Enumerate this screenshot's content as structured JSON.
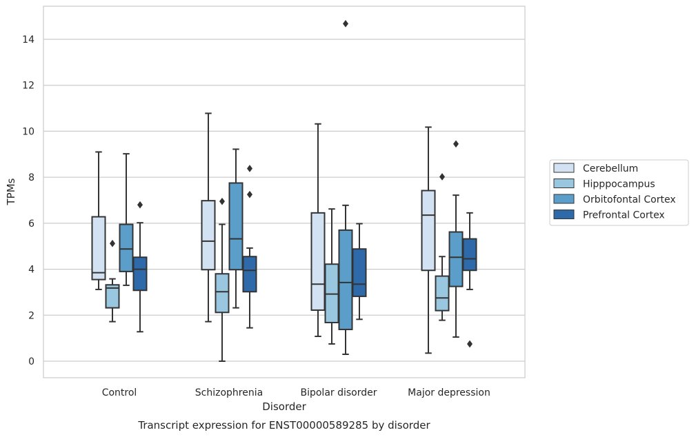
{
  "chart_data": {
    "type": "box",
    "caption": "Transcript expression for ENST00000589285 by disorder",
    "xlabel": "Disorder",
    "ylabel": "TPMs",
    "ylim": [
      -0.7,
      15.4
    ],
    "yticks": [
      0,
      2,
      4,
      6,
      8,
      10,
      12,
      14
    ],
    "grid": true,
    "legend_position": "right",
    "categories": [
      "Control",
      "Schizophrenia",
      "Bipolar disorder",
      "Major depression"
    ],
    "series": [
      {
        "name": "Cerebellum",
        "color": "#d2e2f2",
        "boxes": [
          {
            "whisker_low": 3.12,
            "q1": 3.55,
            "median": 3.85,
            "q3": 6.28,
            "whisker_high": 9.1,
            "outliers": []
          },
          {
            "whisker_low": 1.72,
            "q1": 3.98,
            "median": 5.22,
            "q3": 6.98,
            "whisker_high": 10.78,
            "outliers": []
          },
          {
            "whisker_low": 1.08,
            "q1": 2.22,
            "median": 3.35,
            "q3": 6.45,
            "whisker_high": 10.32,
            "outliers": []
          },
          {
            "whisker_low": 0.35,
            "q1": 3.95,
            "median": 6.35,
            "q3": 7.42,
            "whisker_high": 10.18,
            "outliers": []
          }
        ]
      },
      {
        "name": "Hipppocampus",
        "color": "#9ac7e0",
        "boxes": [
          {
            "whisker_low": 1.72,
            "q1": 2.32,
            "median": 3.18,
            "q3": 3.32,
            "whisker_high": 3.58,
            "outliers": [
              5.12
            ]
          },
          {
            "whisker_low": 0.0,
            "q1": 2.12,
            "median": 3.02,
            "q3": 3.8,
            "whisker_high": 5.95,
            "outliers": [
              6.95
            ]
          },
          {
            "whisker_low": 0.75,
            "q1": 1.68,
            "median": 2.92,
            "q3": 4.22,
            "whisker_high": 6.62,
            "outliers": []
          },
          {
            "whisker_low": 1.78,
            "q1": 2.2,
            "median": 2.75,
            "q3": 3.7,
            "whisker_high": 4.55,
            "outliers": [
              8.02
            ]
          }
        ]
      },
      {
        "name": "Orbitofontal Cortex",
        "color": "#5b9ec9",
        "boxes": [
          {
            "whisker_low": 3.3,
            "q1": 3.9,
            "median": 4.88,
            "q3": 5.95,
            "whisker_high": 9.02,
            "outliers": []
          },
          {
            "whisker_low": 2.32,
            "q1": 3.98,
            "median": 5.32,
            "q3": 7.75,
            "whisker_high": 9.22,
            "outliers": []
          },
          {
            "whisker_low": 0.3,
            "q1": 1.38,
            "median": 3.42,
            "q3": 5.7,
            "whisker_high": 6.78,
            "outliers": [
              14.68
            ]
          },
          {
            "whisker_low": 1.05,
            "q1": 3.25,
            "median": 4.52,
            "q3": 5.62,
            "whisker_high": 7.22,
            "outliers": [
              9.45
            ]
          }
        ]
      },
      {
        "name": "Prefrontal Cortex",
        "color": "#2e6aaa",
        "boxes": [
          {
            "whisker_low": 1.28,
            "q1": 3.08,
            "median": 4.0,
            "q3": 4.52,
            "whisker_high": 6.02,
            "outliers": [
              6.8
            ]
          },
          {
            "whisker_low": 1.45,
            "q1": 3.02,
            "median": 3.95,
            "q3": 4.55,
            "whisker_high": 4.92,
            "outliers": [
              7.25,
              8.38
            ]
          },
          {
            "whisker_low": 1.82,
            "q1": 2.82,
            "median": 3.35,
            "q3": 4.88,
            "whisker_high": 5.98,
            "outliers": []
          },
          {
            "whisker_low": 3.12,
            "q1": 3.95,
            "median": 4.45,
            "q3": 5.32,
            "whisker_high": 6.45,
            "outliers": [
              0.75
            ]
          }
        ]
      }
    ]
  }
}
